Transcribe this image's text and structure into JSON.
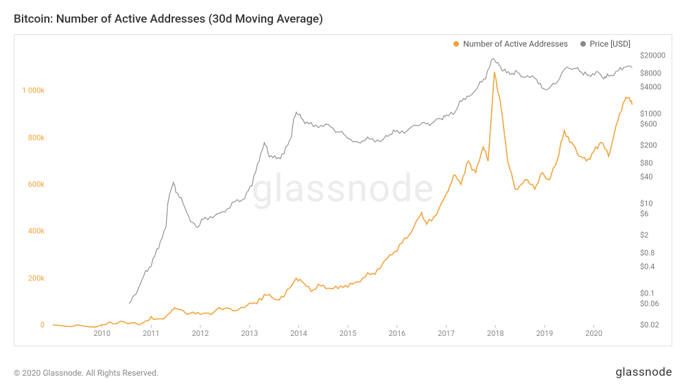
{
  "title": "Bitcoin: Number of Active Addresses (30d Moving Average)",
  "watermark": "glassnode",
  "copyright": "© 2020 Glassnode. All Rights Reserved.",
  "brand": "glassnode",
  "legend": {
    "series1": {
      "label": "Number of Active Addresses",
      "color": "#f2a33a"
    },
    "series2": {
      "label": "Price [USD]",
      "color": "#888888"
    }
  },
  "chart": {
    "background": "#ffffff",
    "border_color": "#e0e0e0",
    "x": {
      "domain": [
        2009.0,
        2020.8
      ],
      "ticks": [
        2010,
        2011,
        2012,
        2013,
        2014,
        2015,
        2016,
        2017,
        2018,
        2019,
        2020
      ],
      "labels": [
        "2010",
        "2011",
        "2012",
        "2013",
        "2014",
        "2015",
        "2016",
        "2017",
        "2018",
        "2019",
        "2020"
      ],
      "label_color": "#888888",
      "fontsize": 11
    },
    "y_left": {
      "scale": "linear",
      "domain": [
        0,
        1150000
      ],
      "ticks": [
        0,
        200000,
        400000,
        600000,
        800000,
        1000000
      ],
      "labels": [
        "0",
        "200k",
        "400k",
        "600k",
        "800k",
        "1 000k"
      ],
      "label_color": "#f2a33a",
      "fontsize": 11
    },
    "y_right": {
      "scale": "log",
      "domain": [
        0.02,
        20000
      ],
      "ticks": [
        0.02,
        0.06,
        0.1,
        0.4,
        0.8,
        2,
        6,
        10,
        40,
        80,
        200,
        600,
        1000,
        4000,
        8000,
        20000
      ],
      "labels": [
        "$0.02",
        "$0.06",
        "$0.1",
        "$0.4",
        "$0.8",
        "$2",
        "$6",
        "$10",
        "$40",
        "$80",
        "$200",
        "$600",
        "$1000",
        "$4000",
        "$8000",
        "$20000"
      ],
      "label_color": "#777777",
      "fontsize": 11
    },
    "series_addresses": {
      "color": "#f2a33a",
      "stroke_width": 1.6,
      "data": [
        [
          2009.0,
          100
        ],
        [
          2009.5,
          500
        ],
        [
          2010.0,
          1500
        ],
        [
          2010.3,
          5000
        ],
        [
          2010.6,
          10000
        ],
        [
          2010.9,
          18000
        ],
        [
          2011.1,
          25000
        ],
        [
          2011.4,
          55000
        ],
        [
          2011.5,
          70000
        ],
        [
          2011.8,
          50000
        ],
        [
          2012.0,
          45000
        ],
        [
          2012.3,
          60000
        ],
        [
          2012.6,
          70000
        ],
        [
          2012.9,
          75000
        ],
        [
          2013.1,
          95000
        ],
        [
          2013.3,
          130000
        ],
        [
          2013.5,
          110000
        ],
        [
          2013.7,
          120000
        ],
        [
          2013.95,
          200000
        ],
        [
          2014.1,
          180000
        ],
        [
          2014.3,
          150000
        ],
        [
          2014.5,
          170000
        ],
        [
          2014.7,
          155000
        ],
        [
          2014.9,
          160000
        ],
        [
          2015.1,
          175000
        ],
        [
          2015.3,
          200000
        ],
        [
          2015.5,
          220000
        ],
        [
          2015.7,
          260000
        ],
        [
          2015.9,
          300000
        ],
        [
          2016.1,
          350000
        ],
        [
          2016.3,
          400000
        ],
        [
          2016.5,
          480000
        ],
        [
          2016.6,
          430000
        ],
        [
          2016.8,
          470000
        ],
        [
          2017.0,
          560000
        ],
        [
          2017.15,
          640000
        ],
        [
          2017.3,
          600000
        ],
        [
          2017.45,
          700000
        ],
        [
          2017.6,
          650000
        ],
        [
          2017.75,
          760000
        ],
        [
          2017.85,
          700000
        ],
        [
          2017.98,
          1080000
        ],
        [
          2018.1,
          950000
        ],
        [
          2018.25,
          700000
        ],
        [
          2018.4,
          580000
        ],
        [
          2018.6,
          620000
        ],
        [
          2018.8,
          580000
        ],
        [
          2018.95,
          650000
        ],
        [
          2019.1,
          620000
        ],
        [
          2019.25,
          700000
        ],
        [
          2019.4,
          830000
        ],
        [
          2019.55,
          780000
        ],
        [
          2019.7,
          720000
        ],
        [
          2019.85,
          700000
        ],
        [
          2020.0,
          740000
        ],
        [
          2020.15,
          780000
        ],
        [
          2020.3,
          720000
        ],
        [
          2020.45,
          850000
        ],
        [
          2020.6,
          950000
        ],
        [
          2020.7,
          970000
        ],
        [
          2020.78,
          940000
        ]
      ]
    },
    "series_price": {
      "color": "#888888",
      "stroke_width": 1.1,
      "data": [
        [
          2010.55,
          0.06
        ],
        [
          2010.7,
          0.1
        ],
        [
          2010.85,
          0.25
        ],
        [
          2011.0,
          0.4
        ],
        [
          2011.15,
          1.0
        ],
        [
          2011.3,
          3.0
        ],
        [
          2011.45,
          30.0
        ],
        [
          2011.5,
          18.0
        ],
        [
          2011.65,
          10.0
        ],
        [
          2011.8,
          4.0
        ],
        [
          2011.95,
          3.0
        ],
        [
          2012.1,
          5.0
        ],
        [
          2012.3,
          5.5
        ],
        [
          2012.5,
          6.5
        ],
        [
          2012.7,
          11.0
        ],
        [
          2012.9,
          13.0
        ],
        [
          2013.05,
          25.0
        ],
        [
          2013.2,
          90.0
        ],
        [
          2013.3,
          230.0
        ],
        [
          2013.4,
          110.0
        ],
        [
          2013.55,
          100.0
        ],
        [
          2013.7,
          130.0
        ],
        [
          2013.85,
          300.0
        ],
        [
          2013.95,
          1100.0
        ],
        [
          2014.05,
          800.0
        ],
        [
          2014.2,
          600.0
        ],
        [
          2014.4,
          500.0
        ],
        [
          2014.6,
          580.0
        ],
        [
          2014.8,
          400.0
        ],
        [
          2014.95,
          330.0
        ],
        [
          2015.1,
          240.0
        ],
        [
          2015.3,
          250.0
        ],
        [
          2015.5,
          280.0
        ],
        [
          2015.7,
          260.0
        ],
        [
          2015.85,
          350.0
        ],
        [
          2016.0,
          430.0
        ],
        [
          2016.2,
          420.0
        ],
        [
          2016.4,
          550.0
        ],
        [
          2016.55,
          650.0
        ],
        [
          2016.7,
          610.0
        ],
        [
          2016.9,
          780.0
        ],
        [
          2017.0,
          950.0
        ],
        [
          2017.2,
          1200.0
        ],
        [
          2017.35,
          2200.0
        ],
        [
          2017.5,
          2600.0
        ],
        [
          2017.65,
          4200.0
        ],
        [
          2017.8,
          6000.0
        ],
        [
          2017.96,
          17000.0
        ],
        [
          2018.05,
          14000.0
        ],
        [
          2018.15,
          9000.0
        ],
        [
          2018.3,
          7500.0
        ],
        [
          2018.45,
          8500.0
        ],
        [
          2018.6,
          6500.0
        ],
        [
          2018.8,
          6300.0
        ],
        [
          2018.95,
          3700.0
        ],
        [
          2019.1,
          3800.0
        ],
        [
          2019.25,
          5000.0
        ],
        [
          2019.45,
          11000.0
        ],
        [
          2019.6,
          10500.0
        ],
        [
          2019.75,
          8500.0
        ],
        [
          2019.9,
          7300.0
        ],
        [
          2020.05,
          8800.0
        ],
        [
          2020.2,
          6000.0
        ],
        [
          2020.3,
          7000.0
        ],
        [
          2020.5,
          9200.0
        ],
        [
          2020.65,
          11000.0
        ],
        [
          2020.78,
          10800.0
        ]
      ]
    }
  }
}
